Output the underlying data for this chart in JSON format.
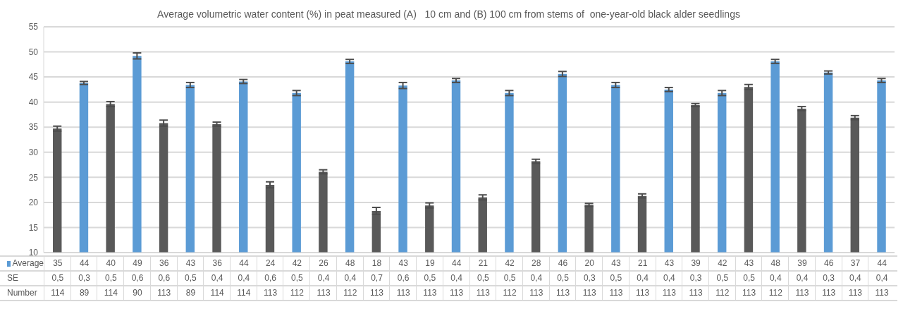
{
  "chart_data": {
    "type": "bar",
    "title": "Average volumetric water content (%) in peat measured (A)   10 cm and (B) 100 cm from stems of  one-year-old black alder seedlings",
    "categories": [
      null,
      null,
      null,
      null,
      null,
      null,
      null,
      null,
      null,
      null,
      null,
      null,
      null,
      null,
      null,
      null,
      null,
      null,
      null,
      null,
      null,
      null,
      null,
      null,
      null,
      null,
      null,
      null,
      null,
      null,
      null,
      null
    ],
    "series": [
      {
        "name": "Average",
        "color": "#5b9bd5",
        "values": [
          34.7,
          43.8,
          39.6,
          49.2,
          35.8,
          43.4,
          35.6,
          44.1,
          23.5,
          41.8,
          26.1,
          48.1,
          18.3,
          43.3,
          19.4,
          44.3,
          21.0,
          41.8,
          28.2,
          45.6,
          19.5,
          43.4,
          21.3,
          42.5,
          39.4,
          41.8,
          43.0,
          48.1,
          38.7,
          45.9,
          36.9,
          44.3
        ],
        "colors": [
          "#595959",
          "#5b9bd5",
          "#595959",
          "#5b9bd5",
          "#595959",
          "#5b9bd5",
          "#595959",
          "#5b9bd5",
          "#595959",
          "#5b9bd5",
          "#595959",
          "#5b9bd5",
          "#595959",
          "#5b9bd5",
          "#595959",
          "#5b9bd5",
          "#595959",
          "#5b9bd5",
          "#595959",
          "#5b9bd5",
          "#595959",
          "#5b9bd5",
          "#595959",
          "#5b9bd5",
          "#595959",
          "#5b9bd5",
          "#595959",
          "#5b9bd5",
          "#595959",
          "#5b9bd5",
          "#595959",
          "#5b9bd5"
        ],
        "value_labels": [
          "35",
          "44",
          "40",
          "49",
          "36",
          "43",
          "36",
          "44",
          "24",
          "42",
          "26",
          "48",
          "18",
          "43",
          "19",
          "44",
          "21",
          "42",
          "28",
          "46",
          "20",
          "43",
          "21",
          "43",
          "39",
          "42",
          "43",
          "48",
          "39",
          "46",
          "37",
          "44"
        ],
        "errors": [
          0.5,
          0.3,
          0.5,
          0.6,
          0.6,
          0.5,
          0.4,
          0.4,
          0.6,
          0.5,
          0.4,
          0.4,
          0.7,
          0.6,
          0.5,
          0.4,
          0.5,
          0.5,
          0.4,
          0.5,
          0.3,
          0.5,
          0.4,
          0.4,
          0.3,
          0.5,
          0.5,
          0.4,
          0.4,
          0.3,
          0.4,
          0.4
        ]
      }
    ],
    "ylim": [
      10,
      55
    ],
    "yticks": [
      10,
      15,
      20,
      25,
      30,
      35,
      40,
      45,
      50,
      55
    ],
    "grid": "y",
    "legend": "bottom",
    "annotations": [
      "SE",
      "0,5",
      "0,3",
      "0,5",
      "0,6",
      "0,6",
      "0,5",
      "0,4",
      "0,4",
      "0,6",
      "0,5",
      "0,4",
      "0,4",
      "0,7",
      "0,6",
      "0,5",
      "0,4",
      "0,5",
      "0,5",
      "0,4",
      "0,5",
      "0,3",
      "0,5",
      "0,4",
      "0,4",
      "0,3",
      "0,5",
      "0,5",
      "0,4",
      "0,4",
      "0,3",
      "0,4",
      "0,4",
      "Number",
      "114",
      "89",
      "114",
      "90",
      "113",
      "89",
      "114",
      "114",
      "113",
      "112",
      "113",
      "112",
      "113",
      "113",
      "113",
      "113",
      "113",
      "112",
      "113",
      "113",
      "113",
      "113",
      "113",
      "113",
      "113",
      "112",
      "113",
      "112",
      "113",
      "113",
      "113",
      "113"
    ]
  }
}
